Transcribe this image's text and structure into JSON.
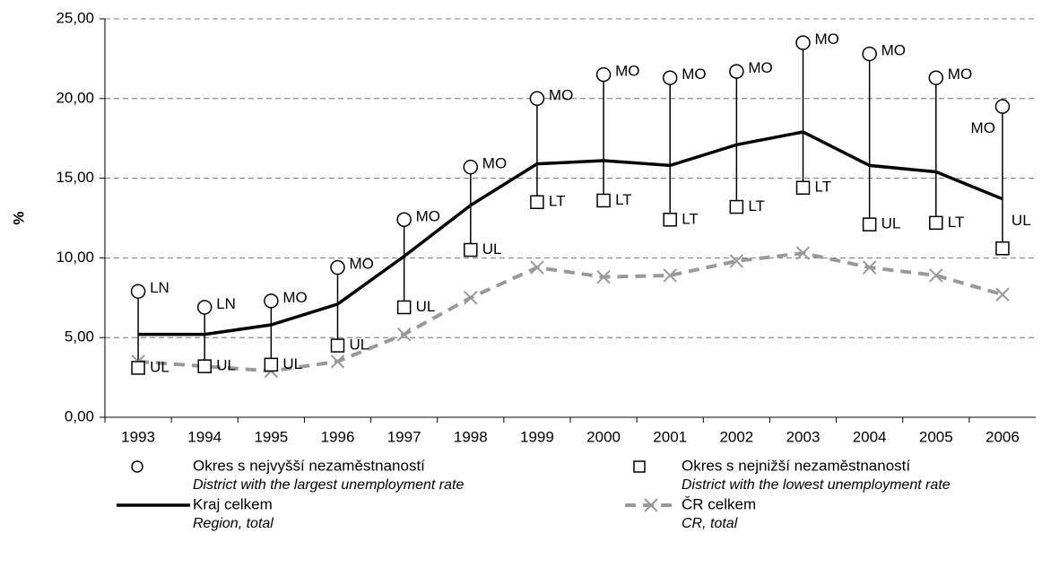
{
  "chart_data": {
    "type": "line",
    "y_label": "%",
    "categories": [
      "1993",
      "1994",
      "1995",
      "1996",
      "1997",
      "1998",
      "1999",
      "2000",
      "2001",
      "2002",
      "2003",
      "2004",
      "2005",
      "2006"
    ],
    "ylim": [
      0,
      25
    ],
    "yticks": [
      {
        "value": 0,
        "label": "0,00"
      },
      {
        "value": 5,
        "label": "5,00"
      },
      {
        "value": 10,
        "label": "10,00"
      },
      {
        "value": 15,
        "label": "15,00"
      },
      {
        "value": 20,
        "label": "20,00"
      },
      {
        "value": 25,
        "label": "25,00"
      }
    ],
    "grid": true,
    "series": [
      {
        "name": "Okres s nejvyšší nezaměstnaností",
        "name_en": "District with the largest unemployment rate",
        "marker": "circle",
        "color": "#000000",
        "values": [
          7.9,
          6.9,
          7.3,
          9.4,
          12.4,
          15.7,
          20.0,
          21.5,
          21.3,
          21.7,
          23.5,
          22.8,
          21.3,
          19.5
        ],
        "value_labels": [
          "LN",
          "LN",
          "MO",
          "MO",
          "MO",
          "MO",
          "MO",
          "MO",
          "MO",
          "MO",
          "MO",
          "MO",
          "MO",
          "MO"
        ]
      },
      {
        "name": "Okres s nejnižší nezaměstnaností",
        "name_en": "District with the lowest unemployment rate",
        "marker": "square",
        "color": "#000000",
        "values": [
          3.1,
          3.2,
          3.3,
          4.5,
          6.9,
          10.5,
          13.5,
          13.6,
          12.4,
          13.2,
          14.4,
          12.1,
          12.2,
          10.6
        ],
        "value_labels": [
          "UL",
          "UL",
          "UL",
          "UL",
          "UL",
          "UL",
          "LT",
          "LT",
          "LT",
          "LT",
          "LT",
          "UL",
          "LT",
          "UL"
        ]
      },
      {
        "name": "Kraj celkem",
        "name_en": "Region, total",
        "style": "solid",
        "color": "#000000",
        "values": [
          5.2,
          5.2,
          5.8,
          7.1,
          10.1,
          13.3,
          15.9,
          16.1,
          15.8,
          17.1,
          17.9,
          15.8,
          15.4,
          13.7
        ]
      },
      {
        "name": "ČR celkem",
        "name_en": "CR, total",
        "style": "dashed",
        "marker": "x",
        "color": "#999999",
        "values": [
          3.5,
          3.2,
          2.9,
          3.5,
          5.2,
          7.5,
          9.4,
          8.8,
          8.9,
          9.8,
          10.3,
          9.4,
          8.9,
          7.7
        ]
      }
    ]
  }
}
